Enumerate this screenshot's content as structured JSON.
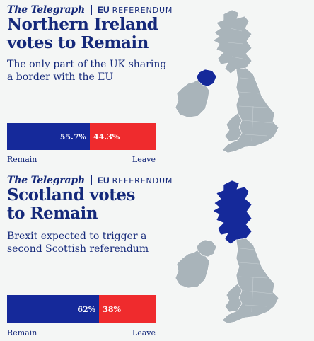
{
  "brand": {
    "logo": "The Telegraph",
    "eu": "EU",
    "referendum": "REFERENDUM"
  },
  "colors": {
    "remain": "#15299a",
    "leave": "#ef2b2d",
    "text": "#15297a",
    "map_land": "#a9b4ba",
    "map_highlight": "#15299a",
    "background": "#f4f6f5"
  },
  "panels": [
    {
      "headline": [
        "Northern Ireland",
        "votes to Remain"
      ],
      "subhead": [
        "The only part of the UK sharing",
        "a border with the EU"
      ],
      "remain_pct": 55.7,
      "leave_pct": 44.3,
      "remain_label": "55.7%",
      "leave_label": "44.3%",
      "legend_left": "Remain",
      "legend_right": "Leave",
      "highlight_region": "northern-ireland"
    },
    {
      "headline": [
        "Scotland votes",
        "to Remain"
      ],
      "subhead": [
        "Brexit expected to trigger a",
        "second Scottish referendum"
      ],
      "remain_pct": 62,
      "leave_pct": 38,
      "remain_label": "62%",
      "leave_label": "38%",
      "legend_left": "Remain",
      "legend_right": "Leave",
      "highlight_region": "scotland"
    }
  ]
}
